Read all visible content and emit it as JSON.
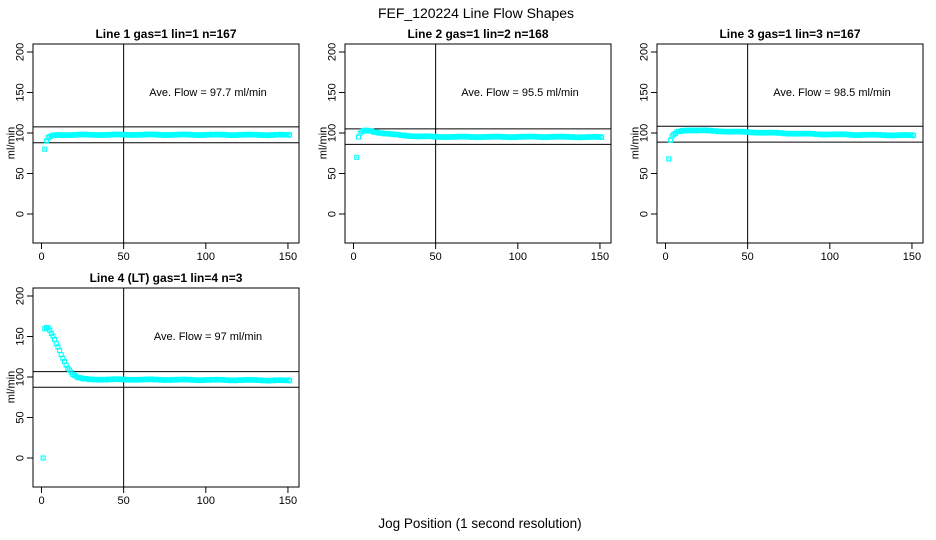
{
  "title": "FEF_120224  Line Flow Shapes",
  "xlabel": "Jog Position (1 second resolution)",
  "ylabel": "ml/min",
  "colors": {
    "points": "#00FFFF",
    "axis": "#000000",
    "background": "#FFFFFF"
  },
  "axes": {
    "x_ticks": [
      0,
      50,
      100,
      150
    ],
    "y_ticks": [
      0,
      50,
      100,
      150,
      200
    ],
    "xlim": [
      0,
      150
    ],
    "ylim": [
      0,
      200
    ],
    "vline_x": 50,
    "grid": "off"
  },
  "chart_data": [
    {
      "type": "scatter",
      "title": "Line 1 gas=1 lin=1 n=167",
      "n": 167,
      "ave_flow_ml_min": 97.7,
      "annotation": "Ave. Flow =  97.7  ml/min",
      "ref_lines": {
        "upper": 107.5,
        "lower": 87.9
      },
      "x_step": 1,
      "anchors": [
        [
          2,
          80
        ],
        [
          3,
          90
        ],
        [
          4,
          93.5
        ],
        [
          5,
          95.3
        ],
        [
          6,
          96.3
        ],
        [
          8,
          97.2
        ],
        [
          10,
          97.5
        ],
        [
          15,
          97.7
        ],
        [
          30,
          97.8
        ],
        [
          60,
          97.9
        ],
        [
          100,
          97.8
        ],
        [
          151,
          97.6
        ]
      ]
    },
    {
      "type": "scatter",
      "title": "Line 2 gas=1 lin=2 n=168",
      "n": 168,
      "ave_flow_ml_min": 95.5,
      "annotation": "Ave. Flow =  95.5  ml/min",
      "ref_lines": {
        "upper": 105.1,
        "lower": 86.0
      },
      "x_step": 1,
      "anchors": [
        [
          2,
          70
        ],
        [
          3,
          95
        ],
        [
          4,
          99
        ],
        [
          5,
          101.5
        ],
        [
          6,
          102.5
        ],
        [
          8,
          103
        ],
        [
          10,
          102.5
        ],
        [
          14,
          101
        ],
        [
          18,
          99.8
        ],
        [
          24,
          98.2
        ],
        [
          30,
          97
        ],
        [
          38,
          96
        ],
        [
          48,
          95.4
        ],
        [
          60,
          95.2
        ],
        [
          90,
          95.2
        ],
        [
          120,
          95.3
        ],
        [
          151,
          94.8
        ]
      ]
    },
    {
      "type": "scatter",
      "title": "Line 3 gas=1 lin=3 n=167",
      "n": 167,
      "ave_flow_ml_min": 98.5,
      "annotation": "Ave. Flow =  98.5  ml/min",
      "ref_lines": {
        "upper": 108.4,
        "lower": 88.7
      },
      "x_step": 1,
      "anchors": [
        [
          2,
          68
        ],
        [
          3,
          91
        ],
        [
          4,
          95.5
        ],
        [
          5,
          98
        ],
        [
          7,
          101
        ],
        [
          10,
          102.8
        ],
        [
          14,
          103.5
        ],
        [
          20,
          103.3
        ],
        [
          30,
          102.4
        ],
        [
          45,
          101.4
        ],
        [
          60,
          100.4
        ],
        [
          80,
          99.2
        ],
        [
          100,
          98.3
        ],
        [
          120,
          97.7
        ],
        [
          151,
          97.1
        ]
      ]
    },
    {
      "type": "scatter",
      "title": "Line 4 (LT) gas=1 lin=4 n=3",
      "n": 3,
      "ave_flow_ml_min": 97,
      "annotation": "Ave. Flow =  97  ml/min",
      "ref_lines": {
        "upper": 106.7,
        "lower": 87.3
      },
      "x_step": 1,
      "anchors": [
        [
          1,
          0
        ],
        [
          2,
          159.5
        ],
        [
          3,
          161
        ],
        [
          4,
          160
        ],
        [
          5,
          157.5
        ],
        [
          6,
          154
        ],
        [
          7,
          150
        ],
        [
          8,
          146
        ],
        [
          9,
          141.5
        ],
        [
          10,
          137
        ],
        [
          11,
          132.5
        ],
        [
          12,
          128
        ],
        [
          13,
          123.5
        ],
        [
          14,
          119
        ],
        [
          15,
          115
        ],
        [
          16,
          111.5
        ],
        [
          17,
          108.5
        ],
        [
          18,
          106
        ],
        [
          19,
          103.8
        ],
        [
          20,
          102
        ],
        [
          21,
          100.6
        ],
        [
          22,
          99.5
        ],
        [
          24,
          98.3
        ],
        [
          26,
          97.6
        ],
        [
          28,
          97.2
        ],
        [
          32,
          97
        ],
        [
          40,
          96.9
        ],
        [
          60,
          96.8
        ],
        [
          80,
          96.6
        ],
        [
          100,
          96.4
        ],
        [
          120,
          96.2
        ],
        [
          135,
          96
        ],
        [
          151,
          95.6
        ]
      ]
    }
  ]
}
